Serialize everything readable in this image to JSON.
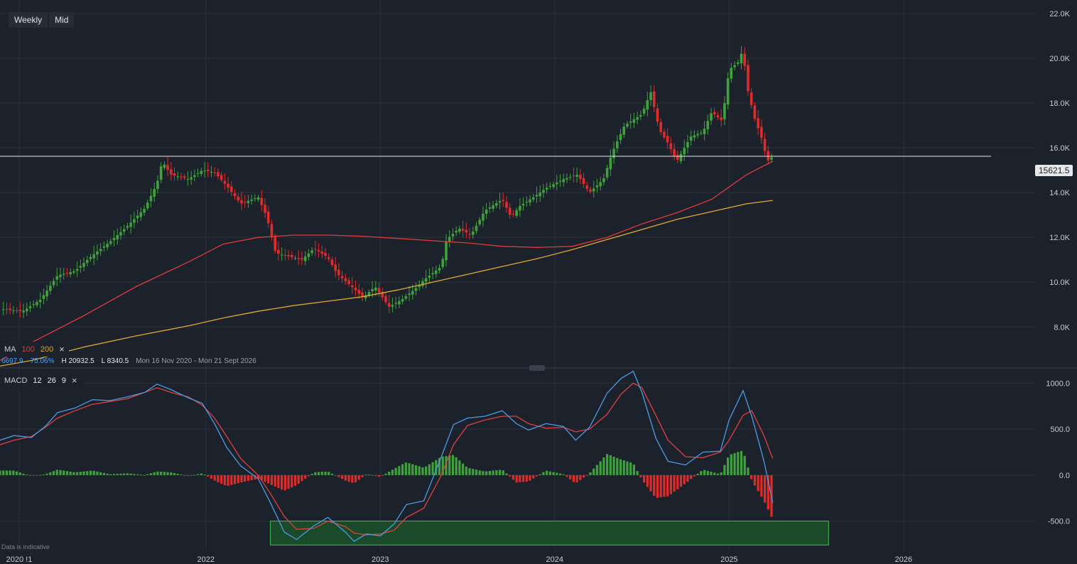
{
  "toolbar": {
    "interval": "Weekly",
    "price_type": "Mid"
  },
  "current_price": {
    "label": "15621.5",
    "value": 15621.5
  },
  "ma_legend": {
    "label": "MA",
    "period_fast": "100",
    "period_slow": "200",
    "fast_color": "#e03a3a",
    "slow_color": "#e0a82e"
  },
  "stats": {
    "last": "6697.9",
    "change": "75.06%",
    "high": "H 20932.5",
    "low": "L 8340.5",
    "range": "Mon 16 Nov 2020 - Mon 21 Sept 2026"
  },
  "macd_legend": {
    "label": "MACD",
    "fast": "12",
    "slow": "26",
    "signal": "9"
  },
  "disclaimer": "Data is indicative",
  "colors": {
    "bg": "#1c222b",
    "grid": "#2a313b",
    "up": "#3fa33b",
    "down": "#e02b2b",
    "macd_line": "#4d9be6",
    "signal_line": "#e04040",
    "zone_fill": "#1b4a2a",
    "zone_border": "#3fbf4f"
  },
  "chart_data": [
    {
      "type": "candlestick",
      "title": "",
      "y_axis": {
        "ticks": [
          8000,
          10000,
          12000,
          14000,
          16000,
          18000,
          20000,
          22000
        ],
        "tick_labels": [
          "8.0K",
          "10.0K",
          "12.0K",
          "14.0K",
          "16.0K",
          "18.0K",
          "20.0K",
          "22.0K"
        ],
        "range": [
          6200,
          22600
        ]
      },
      "x_axis": {
        "tick_labels": [
          "2020 !1",
          "2022",
          "2023",
          "2024",
          "2025",
          "2026"
        ],
        "tick_years": [
          2020.93,
          2022.0,
          2023.0,
          2024.0,
          2025.0,
          2026.0
        ],
        "range": [
          2020.82,
          2026.75
        ]
      },
      "horizontal_line": 15621.5,
      "close_path": [
        [
          2020.82,
          8800
        ],
        [
          2020.95,
          8700
        ],
        [
          2021.05,
          9200
        ],
        [
          2021.15,
          10300
        ],
        [
          2021.25,
          10500
        ],
        [
          2021.35,
          11200
        ],
        [
          2021.45,
          11800
        ],
        [
          2021.55,
          12500
        ],
        [
          2021.65,
          13300
        ],
        [
          2021.72,
          14400
        ],
        [
          2021.75,
          15400
        ],
        [
          2021.8,
          14800
        ],
        [
          2021.9,
          14600
        ],
        [
          2021.98,
          15000
        ],
        [
          2022.05,
          14900
        ],
        [
          2022.12,
          14300
        ],
        [
          2022.2,
          13500
        ],
        [
          2022.3,
          13800
        ],
        [
          2022.35,
          12900
        ],
        [
          2022.4,
          11300
        ],
        [
          2022.45,
          11200
        ],
        [
          2022.55,
          11000
        ],
        [
          2022.62,
          11500
        ],
        [
          2022.7,
          11100
        ],
        [
          2022.75,
          10400
        ],
        [
          2022.85,
          9700
        ],
        [
          2022.9,
          9300
        ],
        [
          2022.97,
          9800
        ],
        [
          2023.05,
          8900
        ],
        [
          2023.12,
          9200
        ],
        [
          2023.2,
          9700
        ],
        [
          2023.25,
          10100
        ],
        [
          2023.35,
          10700
        ],
        [
          2023.38,
          11900
        ],
        [
          2023.45,
          12400
        ],
        [
          2023.52,
          12100
        ],
        [
          2023.6,
          13200
        ],
        [
          2023.7,
          13700
        ],
        [
          2023.75,
          12900
        ],
        [
          2023.8,
          13400
        ],
        [
          2023.88,
          13800
        ],
        [
          2023.95,
          14200
        ],
        [
          2024.05,
          14600
        ],
        [
          2024.13,
          14800
        ],
        [
          2024.2,
          14000
        ],
        [
          2024.28,
          14600
        ],
        [
          2024.33,
          15800
        ],
        [
          2024.4,
          17000
        ],
        [
          2024.5,
          17500
        ],
        [
          2024.55,
          18500
        ],
        [
          2024.6,
          16800
        ],
        [
          2024.65,
          16200
        ],
        [
          2024.7,
          15400
        ],
        [
          2024.78,
          16500
        ],
        [
          2024.85,
          16700
        ],
        [
          2024.9,
          17600
        ],
        [
          2024.96,
          17200
        ],
        [
          2025.0,
          19500
        ],
        [
          2025.05,
          19800
        ],
        [
          2025.08,
          20400
        ],
        [
          2025.1,
          18800
        ],
        [
          2025.15,
          17200
        ],
        [
          2025.18,
          16600
        ],
        [
          2025.22,
          15400
        ],
        [
          2025.25,
          15621.5
        ]
      ],
      "ma100": [
        [
          2020.82,
          6500
        ],
        [
          2021.0,
          7300
        ],
        [
          2021.3,
          8500
        ],
        [
          2021.6,
          9800
        ],
        [
          2021.9,
          10900
        ],
        [
          2022.1,
          11700
        ],
        [
          2022.3,
          12000
        ],
        [
          2022.5,
          12100
        ],
        [
          2022.7,
          12100
        ],
        [
          2022.9,
          12050
        ],
        [
          2023.1,
          11950
        ],
        [
          2023.3,
          11850
        ],
        [
          2023.5,
          11750
        ],
        [
          2023.7,
          11600
        ],
        [
          2023.9,
          11550
        ],
        [
          2024.1,
          11600
        ],
        [
          2024.3,
          12000
        ],
        [
          2024.5,
          12600
        ],
        [
          2024.7,
          13100
        ],
        [
          2024.9,
          13700
        ],
        [
          2025.1,
          14800
        ],
        [
          2025.25,
          15400
        ]
      ],
      "ma200": [
        [
          2020.82,
          6250
        ],
        [
          2021.0,
          6500
        ],
        [
          2021.3,
          7100
        ],
        [
          2021.6,
          7600
        ],
        [
          2021.9,
          8050
        ],
        [
          2022.1,
          8400
        ],
        [
          2022.3,
          8700
        ],
        [
          2022.5,
          8950
        ],
        [
          2022.7,
          9150
        ],
        [
          2022.9,
          9350
        ],
        [
          2023.1,
          9650
        ],
        [
          2023.3,
          10000
        ],
        [
          2023.5,
          10350
        ],
        [
          2023.7,
          10700
        ],
        [
          2023.9,
          11050
        ],
        [
          2024.1,
          11450
        ],
        [
          2024.3,
          11900
        ],
        [
          2024.5,
          12350
        ],
        [
          2024.7,
          12800
        ],
        [
          2024.9,
          13150
        ],
        [
          2025.1,
          13500
        ],
        [
          2025.25,
          13650
        ]
      ]
    },
    {
      "type": "macd",
      "title": "MACD",
      "y_axis": {
        "ticks": [
          -500,
          0,
          500,
          1000
        ],
        "tick_labels": [
          "-500.0",
          "0.0",
          "500.0",
          "1000.0"
        ],
        "range": [
          -820,
          1150
        ]
      },
      "zone": {
        "y0": -500,
        "y1": -760,
        "x0": 2022.37,
        "x1": 2025.57
      },
      "macd": [
        [
          2020.82,
          380
        ],
        [
          2020.9,
          430
        ],
        [
          2021.0,
          410
        ],
        [
          2021.08,
          530
        ],
        [
          2021.15,
          680
        ],
        [
          2021.25,
          730
        ],
        [
          2021.35,
          820
        ],
        [
          2021.45,
          810
        ],
        [
          2021.55,
          850
        ],
        [
          2021.65,
          900
        ],
        [
          2021.72,
          990
        ],
        [
          2021.8,
          930
        ],
        [
          2021.9,
          840
        ],
        [
          2021.98,
          780
        ],
        [
          2022.05,
          560
        ],
        [
          2022.12,
          300
        ],
        [
          2022.2,
          100
        ],
        [
          2022.3,
          -40
        ],
        [
          2022.37,
          -300
        ],
        [
          2022.45,
          -620
        ],
        [
          2022.52,
          -700
        ],
        [
          2022.62,
          -550
        ],
        [
          2022.7,
          -460
        ],
        [
          2022.8,
          -620
        ],
        [
          2022.85,
          -720
        ],
        [
          2022.92,
          -640
        ],
        [
          2023.0,
          -660
        ],
        [
          2023.08,
          -530
        ],
        [
          2023.15,
          -320
        ],
        [
          2023.25,
          -280
        ],
        [
          2023.35,
          200
        ],
        [
          2023.42,
          550
        ],
        [
          2023.5,
          620
        ],
        [
          2023.6,
          640
        ],
        [
          2023.7,
          700
        ],
        [
          2023.78,
          560
        ],
        [
          2023.85,
          490
        ],
        [
          2023.95,
          560
        ],
        [
          2024.05,
          530
        ],
        [
          2024.12,
          380
        ],
        [
          2024.2,
          520
        ],
        [
          2024.3,
          890
        ],
        [
          2024.38,
          1050
        ],
        [
          2024.45,
          1130
        ],
        [
          2024.5,
          900
        ],
        [
          2024.58,
          400
        ],
        [
          2024.65,
          150
        ],
        [
          2024.75,
          110
        ],
        [
          2024.85,
          250
        ],
        [
          2024.95,
          260
        ],
        [
          2025.0,
          600
        ],
        [
          2025.08,
          920
        ],
        [
          2025.13,
          640
        ],
        [
          2025.2,
          150
        ],
        [
          2025.25,
          -300
        ]
      ],
      "signal": [
        [
          2020.82,
          330
        ],
        [
          2020.9,
          380
        ],
        [
          2021.0,
          420
        ],
        [
          2021.08,
          520
        ],
        [
          2021.15,
          620
        ],
        [
          2021.25,
          700
        ],
        [
          2021.35,
          770
        ],
        [
          2021.45,
          800
        ],
        [
          2021.55,
          830
        ],
        [
          2021.65,
          900
        ],
        [
          2021.72,
          950
        ],
        [
          2021.8,
          900
        ],
        [
          2021.9,
          850
        ],
        [
          2021.98,
          760
        ],
        [
          2022.05,
          620
        ],
        [
          2022.12,
          420
        ],
        [
          2022.2,
          180
        ],
        [
          2022.3,
          0
        ],
        [
          2022.37,
          -200
        ],
        [
          2022.45,
          -450
        ],
        [
          2022.52,
          -590
        ],
        [
          2022.62,
          -580
        ],
        [
          2022.7,
          -500
        ],
        [
          2022.8,
          -560
        ],
        [
          2022.85,
          -630
        ],
        [
          2022.92,
          -650
        ],
        [
          2023.0,
          -640
        ],
        [
          2023.08,
          -600
        ],
        [
          2023.15,
          -460
        ],
        [
          2023.25,
          -360
        ],
        [
          2023.35,
          0
        ],
        [
          2023.42,
          330
        ],
        [
          2023.5,
          540
        ],
        [
          2023.6,
          600
        ],
        [
          2023.7,
          640
        ],
        [
          2023.78,
          640
        ],
        [
          2023.85,
          560
        ],
        [
          2023.95,
          510
        ],
        [
          2024.05,
          520
        ],
        [
          2024.12,
          470
        ],
        [
          2024.2,
          500
        ],
        [
          2024.3,
          660
        ],
        [
          2024.38,
          880
        ],
        [
          2024.45,
          1000
        ],
        [
          2024.5,
          950
        ],
        [
          2024.58,
          650
        ],
        [
          2024.65,
          380
        ],
        [
          2024.75,
          200
        ],
        [
          2024.85,
          190
        ],
        [
          2024.95,
          250
        ],
        [
          2025.0,
          380
        ],
        [
          2025.08,
          650
        ],
        [
          2025.13,
          700
        ],
        [
          2025.2,
          430
        ],
        [
          2025.25,
          180
        ]
      ]
    }
  ]
}
